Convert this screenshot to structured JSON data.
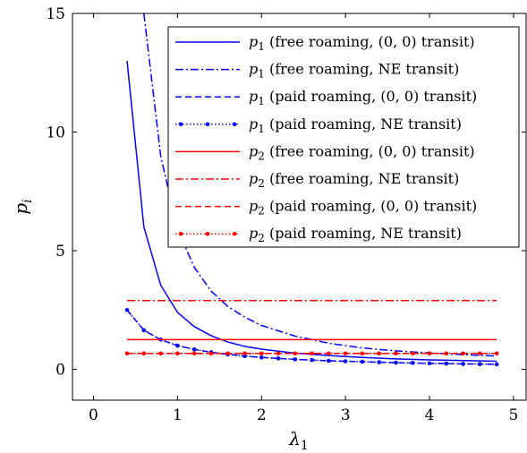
{
  "chart_data": {
    "type": "line",
    "xlabel": "λ1",
    "ylabel": "pi",
    "xlim": [
      -0.25,
      5.15
    ],
    "ylim": [
      -1.3,
      15
    ],
    "xticks": [
      "0",
      "1",
      "2",
      "3",
      "4",
      "5"
    ],
    "yticks": [
      "0",
      "5",
      "10",
      "15"
    ],
    "grid": false,
    "legend_position": "top-right",
    "series": [
      {
        "name": "p1 (free roaming, (0, 0) transit)",
        "label_var": "p",
        "label_sub": "1",
        "label_rest": " (free roaming, (0, 0) transit)",
        "color": "#0000ff",
        "dash": "solid",
        "marker": false,
        "x": [
          0.4,
          0.6,
          0.8,
          1.0,
          1.2,
          1.4,
          1.6,
          1.8,
          2.0,
          2.4,
          2.8,
          3.2,
          3.6,
          4.0,
          4.4,
          4.8
        ],
        "y": [
          13.0,
          6.0,
          3.55,
          2.4,
          1.8,
          1.42,
          1.15,
          0.97,
          0.85,
          0.68,
          0.58,
          0.5,
          0.44,
          0.4,
          0.37,
          0.34
        ]
      },
      {
        "name": "p1 (free roaming, NE transit)",
        "label_var": "p",
        "label_sub": "1",
        "label_rest": " (free roaming, NE transit)",
        "color": "#0000ff",
        "dash": "dashdot",
        "marker": false,
        "x": [
          0.6,
          0.8,
          1.0,
          1.2,
          1.4,
          1.6,
          1.8,
          2.0,
          2.4,
          2.8,
          3.2,
          3.6,
          4.0,
          4.4,
          4.8
        ],
        "y": [
          15.0,
          9.0,
          5.9,
          4.3,
          3.3,
          2.65,
          2.2,
          1.85,
          1.4,
          1.1,
          0.9,
          0.78,
          0.69,
          0.62,
          0.56
        ]
      },
      {
        "name": "p1 (paid roaming, (0, 0) transit)",
        "label_var": "p",
        "label_sub": "1",
        "label_rest": " (paid roaming, (0, 0) transit)",
        "color": "#0000ff",
        "dash": "dashed",
        "marker": false,
        "x": [
          0.4,
          0.6,
          0.8,
          1.0,
          1.2,
          1.4,
          1.6,
          1.8,
          2.0,
          2.4,
          2.8,
          3.2,
          3.6,
          4.0,
          4.4,
          4.8
        ],
        "y": [
          2.5,
          1.65,
          1.25,
          1.0,
          0.84,
          0.72,
          0.63,
          0.56,
          0.5,
          0.42,
          0.36,
          0.32,
          0.28,
          0.25,
          0.23,
          0.21
        ]
      },
      {
        "name": "p1 (paid roaming, NE transit)",
        "label_var": "p",
        "label_sub": "1",
        "label_rest": " (paid roaming, NE transit)",
        "color": "#0000ff",
        "dash": "dotted",
        "marker": true,
        "x": [
          0.4,
          0.6,
          0.8,
          1.0,
          1.2,
          1.4,
          1.6,
          1.8,
          2.0,
          2.2,
          2.4,
          2.6,
          2.8,
          3.0,
          3.2,
          3.4,
          3.6,
          3.8,
          4.0,
          4.2,
          4.4,
          4.6,
          4.8
        ],
        "y": [
          2.5,
          1.65,
          1.25,
          1.0,
          0.84,
          0.72,
          0.63,
          0.56,
          0.5,
          0.46,
          0.42,
          0.39,
          0.36,
          0.34,
          0.32,
          0.3,
          0.28,
          0.27,
          0.25,
          0.24,
          0.23,
          0.22,
          0.21
        ]
      },
      {
        "name": "p2 (free roaming, (0, 0) transit)",
        "label_var": "p",
        "label_sub": "2",
        "label_rest": " (free roaming, (0, 0) transit)",
        "color": "#ff0000",
        "dash": "solid",
        "marker": false,
        "x": [
          0.4,
          4.8
        ],
        "y": [
          1.25,
          1.25
        ]
      },
      {
        "name": "p2 (free roaming, NE transit)",
        "label_var": "p",
        "label_sub": "2",
        "label_rest": " (free roaming, NE transit)",
        "color": "#ff0000",
        "dash": "dashdot",
        "marker": false,
        "x": [
          0.4,
          4.8
        ],
        "y": [
          2.9,
          2.9
        ]
      },
      {
        "name": "p2 (paid roaming, (0, 0) transit)",
        "label_var": "p",
        "label_sub": "2",
        "label_rest": " (paid roaming, (0, 0) transit)",
        "color": "#ff0000",
        "dash": "dashed",
        "marker": false,
        "x": [
          0.4,
          4.8
        ],
        "y": [
          0.67,
          0.67
        ]
      },
      {
        "name": "p2 (paid roaming, NE transit)",
        "label_var": "p",
        "label_sub": "2",
        "label_rest": " (paid roaming, NE transit)",
        "color": "#ff0000",
        "dash": "dotted",
        "marker": true,
        "x": [
          0.4,
          0.6,
          0.8,
          1.0,
          1.2,
          1.4,
          1.6,
          1.8,
          2.0,
          2.2,
          2.4,
          2.6,
          2.8,
          3.0,
          3.2,
          3.4,
          3.6,
          3.8,
          4.0,
          4.2,
          4.4,
          4.6,
          4.8
        ],
        "y": [
          0.67,
          0.67,
          0.67,
          0.67,
          0.67,
          0.67,
          0.67,
          0.67,
          0.67,
          0.67,
          0.67,
          0.67,
          0.67,
          0.67,
          0.67,
          0.67,
          0.67,
          0.67,
          0.67,
          0.67,
          0.67,
          0.67,
          0.67
        ]
      }
    ]
  }
}
